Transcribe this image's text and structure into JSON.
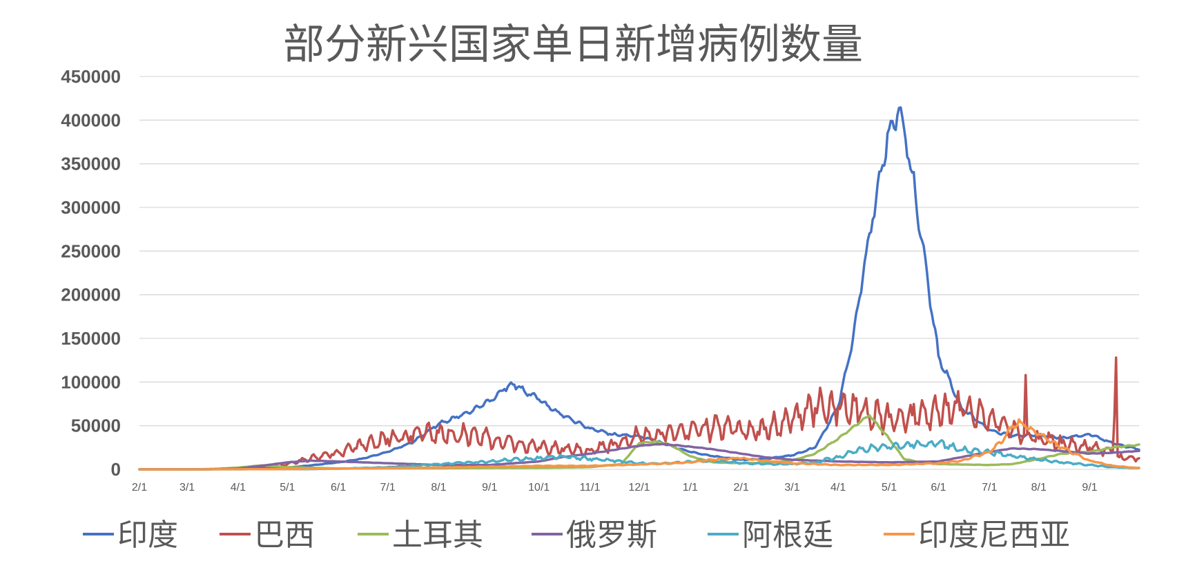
{
  "chart_data": {
    "type": "line",
    "title": "部分新兴国家单日新增病例数量",
    "ylim": [
      0,
      450000
    ],
    "yticks": [
      "0",
      "50000",
      "100000",
      "150000",
      "200000",
      "250000",
      "300000",
      "350000",
      "400000",
      "450000"
    ],
    "xticks": [
      "2/1",
      "3/1",
      "4/1",
      "5/1",
      "6/1",
      "7/1",
      "8/1",
      "9/1",
      "10/1",
      "11/1",
      "12/1",
      "1/1",
      "2/1",
      "3/1",
      "4/1",
      "5/1",
      "6/1",
      "7/1",
      "8/1",
      "9/1"
    ],
    "grid": true,
    "legend_position": "bottom",
    "series": [
      {
        "name": "印度",
        "color": "#4472C4",
        "x": [
          "2/1",
          "3/1",
          "4/1",
          "4/15",
          "5/1",
          "5/15",
          "6/1",
          "6/15",
          "7/1",
          "7/15",
          "8/1",
          "8/15",
          "9/1",
          "9/10",
          "9/16",
          "10/1",
          "10/15",
          "11/1",
          "11/15",
          "12/1",
          "12/15",
          "1/1",
          "1/15",
          "2/1",
          "2/15",
          "3/1",
          "3/15",
          "4/1",
          "4/10",
          "4/20",
          "5/1",
          "5/7",
          "5/15",
          "6/1",
          "6/15",
          "7/1",
          "7/15",
          "8/1",
          "8/15",
          "9/1",
          "9/15",
          "9/30"
        ],
        "values": [
          0,
          0,
          300,
          1000,
          2000,
          4500,
          8000,
          12000,
          20000,
          30000,
          52000,
          62000,
          78000,
          92000,
          97000,
          80000,
          62000,
          47000,
          40000,
          38000,
          30000,
          20000,
          15000,
          11000,
          12000,
          16000,
          25000,
          72000,
          150000,
          270000,
          390000,
          414000,
          340000,
          130000,
          70000,
          45000,
          38000,
          40000,
          36000,
          40000,
          30000,
          23000
        ]
      },
      {
        "name": "巴西",
        "color": "#C0504D",
        "x": [
          "2/1",
          "3/1",
          "3/15",
          "4/1",
          "4/15",
          "5/1",
          "5/15",
          "6/1",
          "6/15",
          "7/1",
          "7/15",
          "8/1",
          "8/15",
          "9/1",
          "9/15",
          "10/1",
          "10/15",
          "11/1",
          "11/15",
          "12/1",
          "12/15",
          "1/1",
          "1/15",
          "2/1",
          "2/15",
          "3/1",
          "3/15",
          "4/1",
          "4/15",
          "5/1",
          "5/15",
          "6/1",
          "6/15",
          "7/1",
          "7/15",
          "7/22",
          "7/23",
          "7/24",
          "8/1",
          "8/15",
          "9/1",
          "9/15",
          "9/17",
          "9/18",
          "9/19",
          "9/30"
        ],
        "values": [
          0,
          0,
          0,
          1000,
          3000,
          6000,
          12000,
          20000,
          28000,
          35000,
          38000,
          42000,
          40000,
          35000,
          30000,
          25000,
          24000,
          22000,
          28000,
          38000,
          42000,
          45000,
          48000,
          45000,
          46000,
          55000,
          70000,
          72000,
          65000,
          60000,
          62000,
          65000,
          70000,
          60000,
          45000,
          40000,
          108000,
          40000,
          35000,
          30000,
          25000,
          20000,
          128000,
          15000,
          14000,
          12000
        ]
      },
      {
        "name": "土耳其",
        "color": "#9BBB59",
        "x": [
          "2/1",
          "3/1",
          "3/15",
          "4/1",
          "4/15",
          "5/1",
          "6/1",
          "7/1",
          "8/1",
          "9/1",
          "10/1",
          "11/1",
          "11/20",
          "12/1",
          "12/10",
          "12/20",
          "1/1",
          "1/15",
          "2/1",
          "2/15",
          "3/1",
          "3/15",
          "4/1",
          "4/15",
          "4/20",
          "5/1",
          "5/10",
          "5/20",
          "6/1",
          "7/1",
          "7/15",
          "8/1",
          "8/15",
          "9/1",
          "9/15",
          "9/30"
        ],
        "values": [
          0,
          0,
          0,
          2000,
          4500,
          2500,
          1000,
          1200,
          1200,
          1600,
          1700,
          2500,
          6000,
          30000,
          32000,
          28000,
          15000,
          8000,
          7000,
          7500,
          10000,
          18000,
          35000,
          55000,
          62000,
          35000,
          12000,
          8000,
          6000,
          5000,
          6000,
          12000,
          18000,
          20000,
          25000,
          28000
        ]
      },
      {
        "name": "俄罗斯",
        "color": "#8064A2",
        "x": [
          "2/1",
          "3/1",
          "4/1",
          "4/15",
          "5/1",
          "5/15",
          "6/1",
          "7/1",
          "8/1",
          "9/1",
          "10/1",
          "10/15",
          "11/1",
          "11/15",
          "12/1",
          "12/15",
          "1/1",
          "1/15",
          "2/1",
          "2/15",
          "3/1",
          "4/1",
          "5/1",
          "6/1",
          "6/15",
          "7/1",
          "7/15",
          "8/1",
          "8/15",
          "9/1",
          "9/15",
          "9/30"
        ],
        "values": [
          0,
          0,
          800,
          4000,
          8000,
          10000,
          9000,
          7000,
          5000,
          5000,
          9000,
          14000,
          18000,
          22000,
          27000,
          29000,
          26000,
          23000,
          18000,
          14000,
          11000,
          9000,
          8000,
          9000,
          14000,
          20000,
          24000,
          23000,
          21000,
          18000,
          19000,
          21000
        ]
      },
      {
        "name": "阿根廷",
        "color": "#4BACC6",
        "x": [
          "2/1",
          "3/1",
          "4/1",
          "5/1",
          "5/15",
          "6/1",
          "6/15",
          "7/1",
          "7/15",
          "8/1",
          "8/15",
          "9/1",
          "9/15",
          "10/1",
          "10/15",
          "11/1",
          "11/15",
          "12/1",
          "12/15",
          "1/1",
          "1/15",
          "2/1",
          "2/15",
          "3/1",
          "3/15",
          "4/1",
          "4/15",
          "5/1",
          "5/15",
          "6/1",
          "6/15",
          "7/1",
          "7/15",
          "8/1",
          "8/15",
          "9/1",
          "9/15",
          "9/30"
        ],
        "values": [
          0,
          0,
          100,
          200,
          300,
          800,
          1500,
          2500,
          4000,
          6000,
          7500,
          9000,
          11000,
          13000,
          15000,
          12000,
          10000,
          7000,
          6500,
          9000,
          10000,
          7000,
          6000,
          6000,
          8000,
          14000,
          24000,
          25000,
          28000,
          30000,
          22000,
          20000,
          15000,
          11000,
          8000,
          5000,
          2500,
          1500
        ]
      },
      {
        "name": "印度尼西亚",
        "color": "#F79646",
        "x": [
          "2/1",
          "3/1",
          "4/1",
          "5/1",
          "6/1",
          "7/1",
          "8/1",
          "9/1",
          "10/1",
          "11/1",
          "12/1",
          "12/15",
          "1/1",
          "1/15",
          "1/30",
          "2/15",
          "3/1",
          "4/1",
          "5/1",
          "6/1",
          "6/15",
          "7/1",
          "7/10",
          "7/15",
          "7/20",
          "8/1",
          "8/15",
          "9/1",
          "9/15",
          "9/30"
        ],
        "values": [
          0,
          0,
          100,
          300,
          700,
          1500,
          2000,
          3000,
          4000,
          4000,
          5500,
          6500,
          8000,
          11000,
          13000,
          10000,
          7000,
          5000,
          5000,
          7000,
          10000,
          20000,
          35000,
          50000,
          54000,
          40000,
          25000,
          10000,
          4000,
          1500
        ]
      }
    ]
  }
}
